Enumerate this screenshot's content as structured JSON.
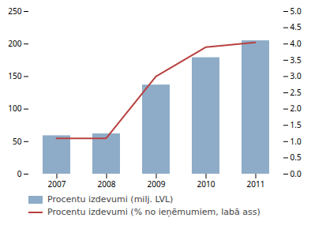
{
  "chart_data": {
    "type": "bar",
    "categories": [
      "2007",
      "2008",
      "2009",
      "2010",
      "2011"
    ],
    "series": [
      {
        "name": "Procentu izdevumi (milj. LVL)",
        "type": "bar",
        "color": "#8eacc8",
        "values": [
          59,
          62,
          137,
          179,
          205
        ]
      },
      {
        "name": "Procentu izdevumi (% no ieņēmumiem, labā ass)",
        "type": "line",
        "color": "#b94040",
        "axis": "y2",
        "values": [
          1.1,
          1.1,
          3.0,
          3.9,
          4.05
        ]
      }
    ],
    "ylim": [
      0,
      250
    ],
    "yticks": [
      0,
      50,
      100,
      150,
      200,
      250
    ],
    "y2lim": [
      0.0,
      5.0
    ],
    "y2ticks": [
      {
        "value": 0,
        "label": "0.0"
      },
      0.5,
      {
        "value": 1,
        "label": "1.0"
      },
      1.5,
      {
        "value": 2,
        "label": "2.0"
      },
      2.5,
      {
        "value": 3,
        "label": "3.0"
      },
      3.5,
      {
        "value": 4,
        "label": "4.0"
      },
      4.5,
      {
        "value": 5,
        "label": "5.0"
      }
    ],
    "grid": false,
    "legend": "lower left"
  }
}
